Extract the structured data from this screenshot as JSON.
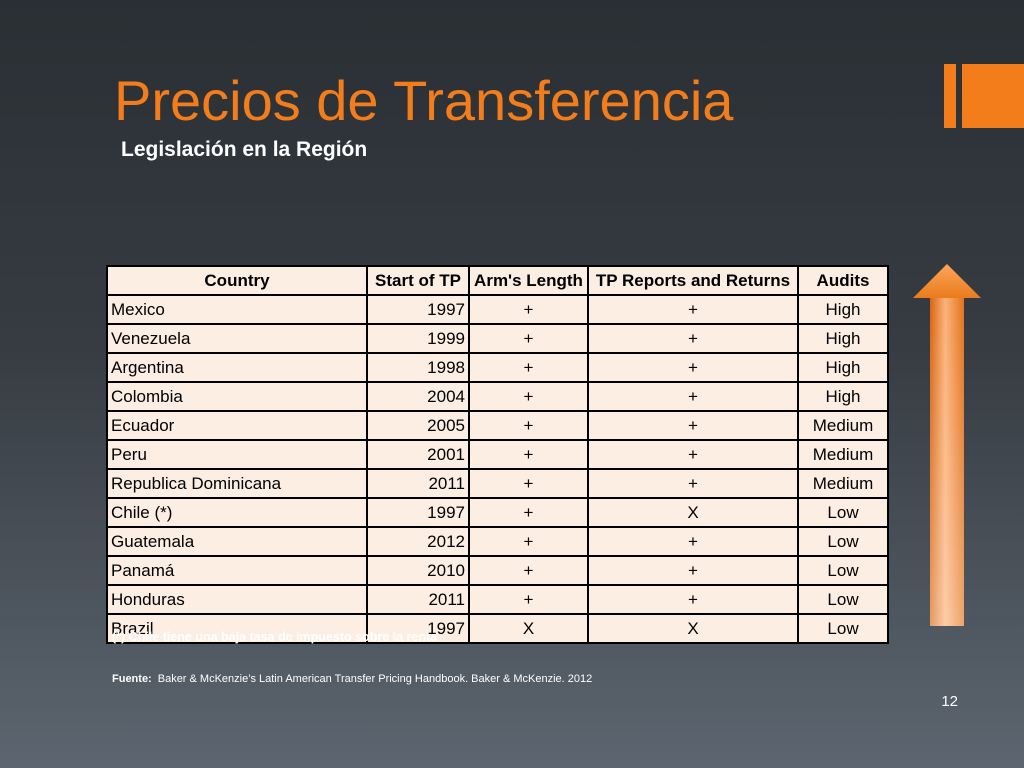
{
  "slide": {
    "title": "Precios de Transferencia",
    "subtitle": "Legislación en la Región",
    "note": "(*) Chile tiene una baja tasa de impuesto sobre la renta",
    "source_label": "Fuente:",
    "source_text": "Baker & McKenzie’s Latin  American Transfer Pricing Handbook.  Baker & McKenzie. 2012",
    "page_number": "12"
  },
  "table": {
    "headers": [
      "Country",
      "Start of TP",
      "Arm's Length",
      "TP Reports and Returns",
      "Audits"
    ],
    "rows": [
      [
        "Mexico",
        "1997",
        "+",
        "+",
        "High"
      ],
      [
        "Venezuela",
        "1999",
        "+",
        "+",
        "High"
      ],
      [
        "Argentina",
        "1998",
        "+",
        "+",
        "High"
      ],
      [
        "Colombia",
        "2004",
        "+",
        "+",
        "High"
      ],
      [
        "Ecuador",
        "2005",
        "+",
        "+",
        "Medium"
      ],
      [
        "Peru",
        "2001",
        "+",
        "+",
        "Medium"
      ],
      [
        "Republica Dominicana",
        "2011",
        "+",
        "+",
        "Medium"
      ],
      [
        "Chile  (*)",
        "1997",
        "+",
        "X",
        "Low"
      ],
      [
        "Guatemala",
        "2012",
        "+",
        "+",
        "Low"
      ],
      [
        "Panamá",
        "2010",
        "+",
        "+",
        "Low"
      ],
      [
        "Honduras",
        "2011",
        "+",
        "+",
        "Low"
      ],
      [
        "Brazil",
        "1997",
        "X",
        "X",
        "Low"
      ]
    ]
  },
  "colors": {
    "accent": "#f47d1b",
    "table_background": "#fdeee4",
    "slide_background_top": "#2a2f34",
    "slide_background_bottom": "#5d6670"
  },
  "icons": {
    "side_arrow": "arrow-up-icon"
  }
}
